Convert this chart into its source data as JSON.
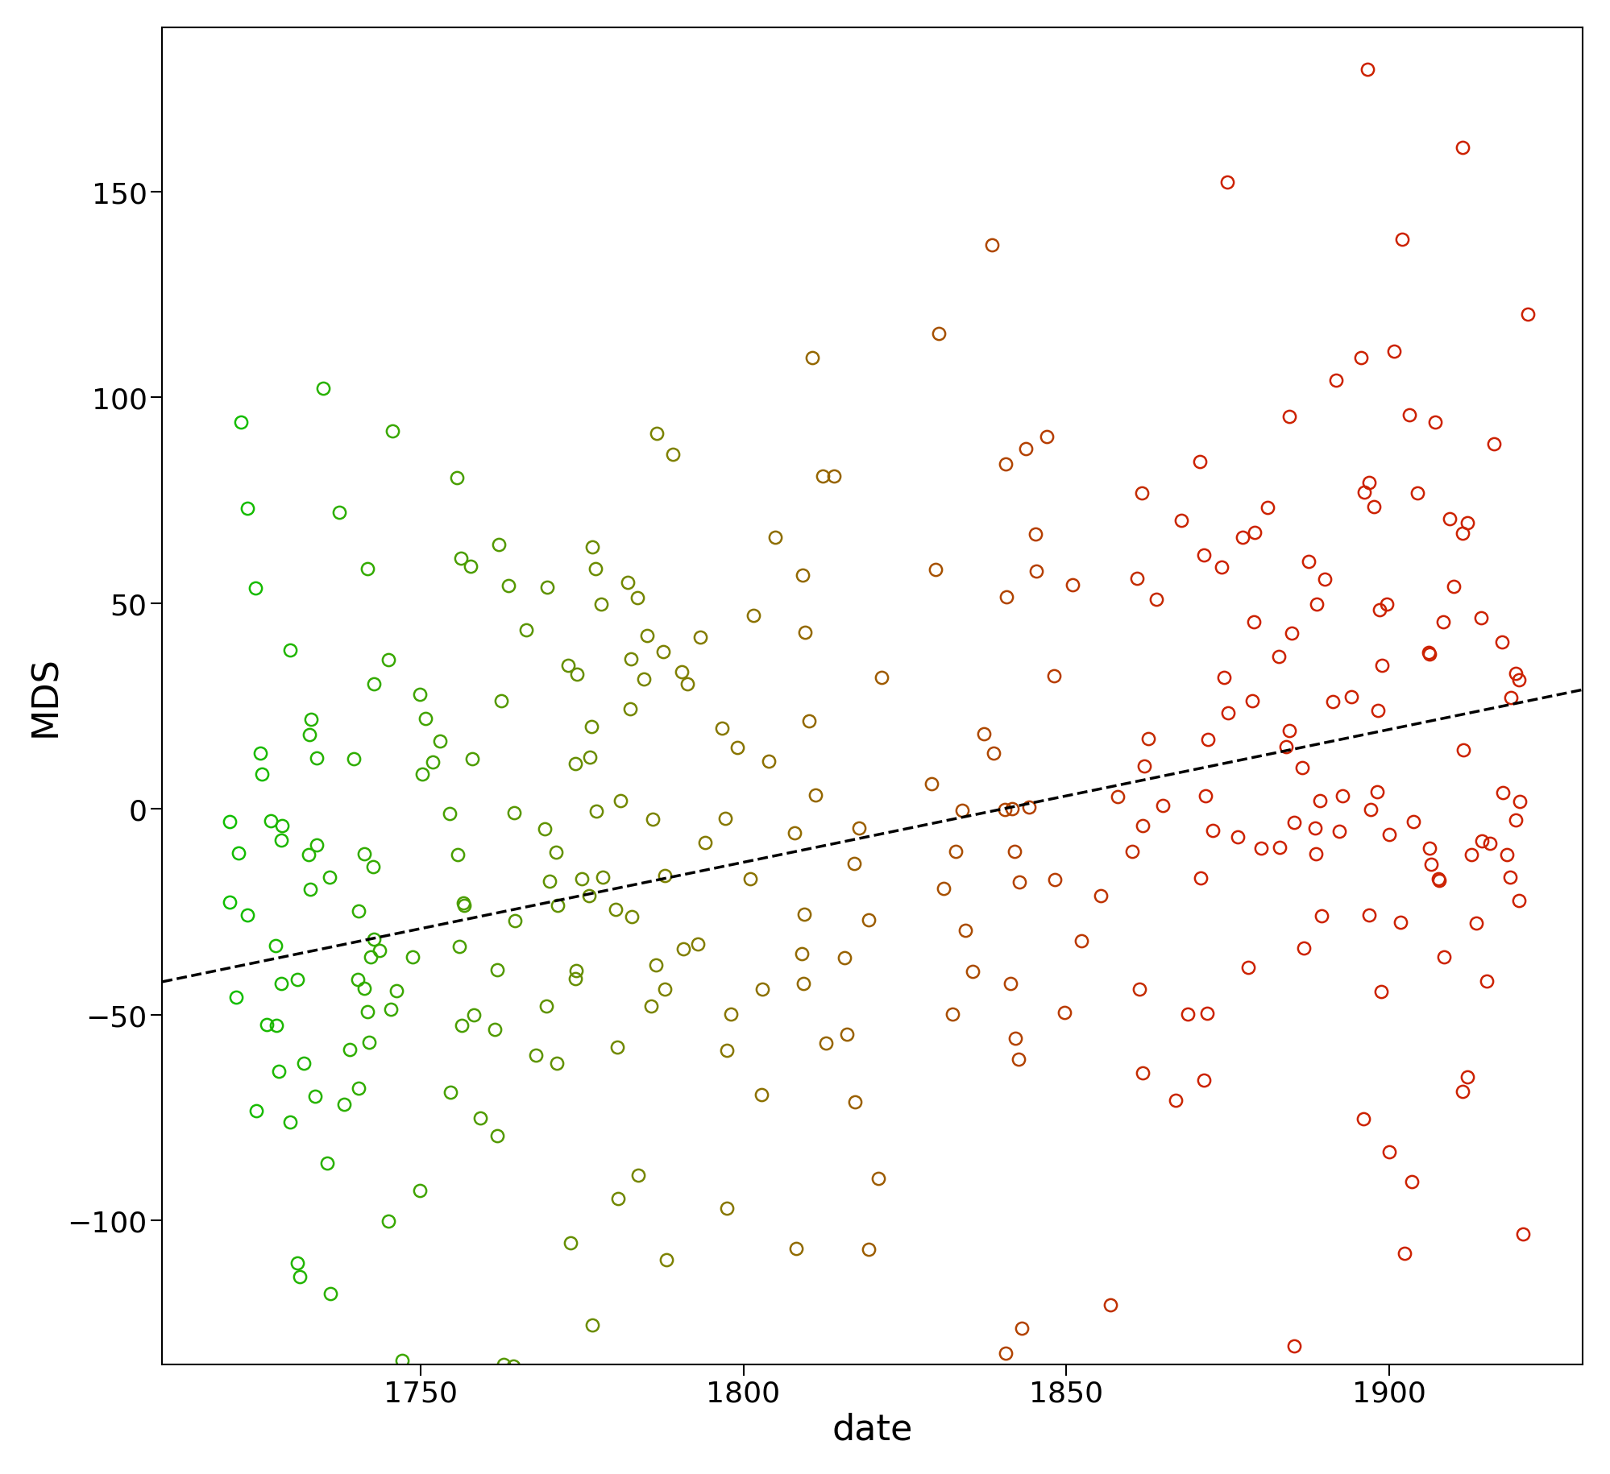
{
  "xlabel": "date",
  "ylabel": "MDS",
  "xlim": [
    1710,
    1930
  ],
  "ylim": [
    -135,
    190
  ],
  "xticks": [
    1750,
    1800,
    1850,
    1900
  ],
  "yticks": [
    -100,
    -50,
    0,
    50,
    100,
    150
  ],
  "marker_size": 11,
  "marker_linewidth": 1.8,
  "axis_label_fontsize": 32,
  "tick_fontsize": 26,
  "regression_linewidth": 2.5,
  "reg_x1": 1710,
  "reg_y1": -42.0,
  "reg_x2": 1930,
  "reg_y2": 29.0,
  "seed": 42,
  "color_green": [
    0,
    200,
    0
  ],
  "color_olive": [
    128,
    128,
    0
  ],
  "color_red": [
    204,
    34,
    0
  ],
  "date_green_end": 1790,
  "date_red_start": 1870,
  "date_min": 1720,
  "date_max": 1922,
  "n_early": 140,
  "n_mid": 90,
  "n_late": 103,
  "scatter_std": 58
}
